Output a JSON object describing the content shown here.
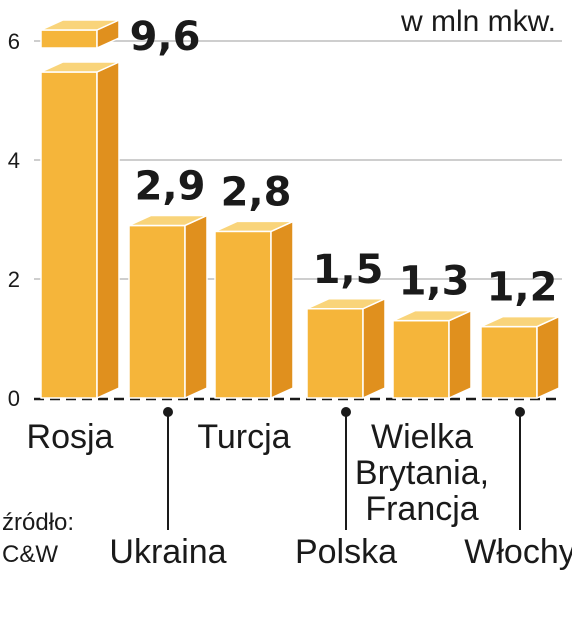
{
  "chart_data": {
    "type": "bar",
    "unit_label": "w mln mkw.",
    "categories": [
      "Rosja",
      "Ukraina",
      "Turcja",
      "Polska",
      "Wielka Brytania, Francja",
      "Włochy"
    ],
    "category_lines": [
      [
        "Rosja"
      ],
      [
        "Ukraina"
      ],
      [
        "Turcja"
      ],
      [
        "Polska"
      ],
      [
        "Wielka",
        "Brytania,",
        "Francja"
      ],
      [
        "Włochy"
      ]
    ],
    "values": [
      9.6,
      2.9,
      2.8,
      1.5,
      1.3,
      1.2
    ],
    "value_labels": [
      "9,6",
      "2,9",
      "2,8",
      "1,5",
      "1,3",
      "1,2"
    ],
    "yticks": [
      "0",
      "2",
      "4",
      "6"
    ],
    "ylim": [
      0,
      6
    ],
    "axis_break": true,
    "grid": true,
    "colors": {
      "front": "#f5b53a",
      "side": "#e0901e",
      "top": "#f9d47a",
      "edge": "#ffffff",
      "grid": "#bdbdbd",
      "axis": "#1a1a1a"
    }
  },
  "source": {
    "lines": [
      "źródło:",
      "C&W"
    ]
  }
}
